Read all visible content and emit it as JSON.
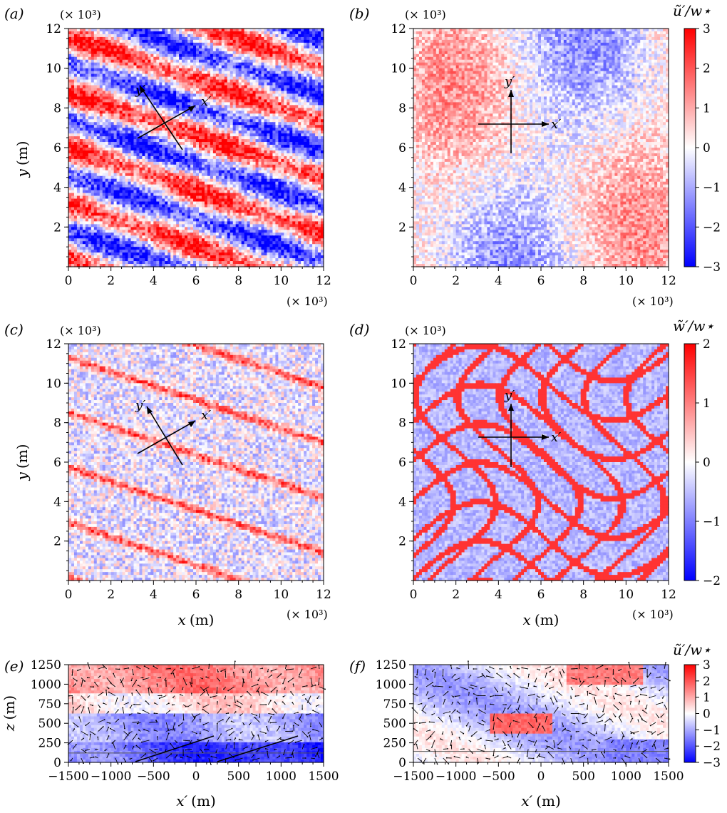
{
  "figure": {
    "panel_labels": [
      "(a)",
      "(b)",
      "(c)",
      "(d)",
      "(e)",
      "(f)"
    ],
    "multiplier": "(× 10³)",
    "axes_text": {
      "x_label": "x",
      "x_unit": "(m)",
      "y_label": "y",
      "y_unit": "(m)",
      "z_label": "z",
      "z_unit": "(m)",
      "xprime_label": "x′",
      "xprime_unit": "(m)"
    },
    "annotations": {
      "xprime": "x′",
      "yprime": "y′"
    },
    "colorbars": {
      "u": {
        "title": "ũ′/w⋆",
        "ticks": [
          "3",
          "2",
          "1",
          "0",
          "−1",
          "−2",
          "−3"
        ],
        "range": [
          -3,
          3
        ]
      },
      "w": {
        "title": "w̃′/w⋆",
        "ticks": [
          "2",
          "1",
          "0",
          "−1",
          "−2"
        ],
        "range": [
          -2,
          2
        ]
      },
      "u2": {
        "title": "ũ′/w⋆",
        "ticks": [
          "3",
          "2",
          "1",
          "0",
          "−1",
          "−2",
          "−3"
        ],
        "range": [
          -3,
          3
        ]
      }
    },
    "colors": {
      "positive": "#ff0000",
      "zero": "#ffffff",
      "negative": "#0000ff"
    }
  },
  "chart_data": [
    {
      "id": "a",
      "type": "heatmap",
      "title": "(a)",
      "xlabel": "x (m)",
      "ylabel": "y (m)",
      "xlim": [
        0,
        12000
      ],
      "ylim": [
        0,
        12000
      ],
      "xticks": [
        "0",
        "2",
        "4",
        "6",
        "8",
        "10",
        "12"
      ],
      "yticks": [
        "2",
        "4",
        "6",
        "8",
        "10",
        "12"
      ],
      "x_multiplier": "(× 10³)",
      "y_multiplier": "(× 10³)",
      "field": "u′/w⋆",
      "range": [
        -3,
        3
      ],
      "pattern": "oblique streaks inclined about 20° to x-axis",
      "rotated_axes_origin": [
        4500,
        7300
      ]
    },
    {
      "id": "b",
      "type": "heatmap",
      "title": "(b)",
      "xlabel": "",
      "ylabel": "",
      "xlim": [
        0,
        12000
      ],
      "ylim": [
        0,
        12000
      ],
      "xticks": [
        "0",
        "2",
        "4",
        "6",
        "8",
        "10",
        "12"
      ],
      "yticks": [
        "2",
        "4",
        "6",
        "8",
        "10",
        "12"
      ],
      "x_multiplier": "(× 10³)",
      "y_multiplier": "(× 10³)",
      "field": "u′/w⋆",
      "range": [
        -3,
        3
      ],
      "pattern": "weak diffuse patches",
      "rotated_axes_origin": [
        4500,
        7300
      ]
    },
    {
      "id": "c",
      "type": "heatmap",
      "title": "(c)",
      "xlabel": "x (m)",
      "ylabel": "y (m)",
      "xlim": [
        0,
        12000
      ],
      "ylim": [
        0,
        12000
      ],
      "xticks": [
        "0",
        "2",
        "4",
        "6",
        "8",
        "10",
        "12"
      ],
      "yticks": [
        "2",
        "4",
        "6",
        "8",
        "10",
        "12"
      ],
      "x_multiplier": "(× 10³)",
      "y_multiplier": "(× 10³)",
      "field": "w′/w⋆",
      "range": [
        -2,
        2
      ],
      "pattern": "thin oblique updraft streaks",
      "rotated_axes_origin": [
        4500,
        7300
      ]
    },
    {
      "id": "d",
      "type": "heatmap",
      "title": "(d)",
      "xlabel": "x (m)",
      "ylabel": "",
      "xlim": [
        0,
        12000
      ],
      "ylim": [
        0,
        12000
      ],
      "xticks": [
        "0",
        "2",
        "4",
        "6",
        "8",
        "10",
        "12"
      ],
      "yticks": [
        "2",
        "4",
        "6",
        "8",
        "10",
        "12"
      ],
      "x_multiplier": "(× 10³)",
      "y_multiplier": "(× 10³)",
      "field": "w′/w⋆",
      "range": [
        -2,
        2
      ],
      "pattern": "cellular network of updraft walls",
      "rotated_axes_origin": [
        4500,
        7300
      ]
    },
    {
      "id": "e",
      "type": "heatmap",
      "title": "(e)",
      "xlabel": "x′ (m)",
      "ylabel": "z (m)",
      "xlim": [
        -1500,
        1500
      ],
      "ylim": [
        0,
        1250
      ],
      "xticks": [
        "−1500",
        "−1000",
        "−500",
        "0",
        "500",
        "1000",
        "1500"
      ],
      "yticks": [
        "0",
        "250",
        "500",
        "750",
        "1000",
        "1250"
      ],
      "field": "u′/w⋆",
      "range": [
        -3,
        3
      ],
      "reference_height": 120,
      "overlay": "velocity vectors"
    },
    {
      "id": "f",
      "type": "heatmap",
      "title": "(f)",
      "xlabel": "x′ (m)",
      "ylabel": "",
      "xlim": [
        -1500,
        1500
      ],
      "ylim": [
        0,
        1250
      ],
      "xticks": [
        "−1500",
        "−1000",
        "−500",
        "0",
        "500",
        "1000",
        "1500"
      ],
      "yticks": [
        "0",
        "250",
        "500",
        "750",
        "1000",
        "1250"
      ],
      "field": "u′/w⋆",
      "range": [
        -3,
        3
      ],
      "reference_height": 140,
      "overlay": "velocity vectors"
    }
  ]
}
